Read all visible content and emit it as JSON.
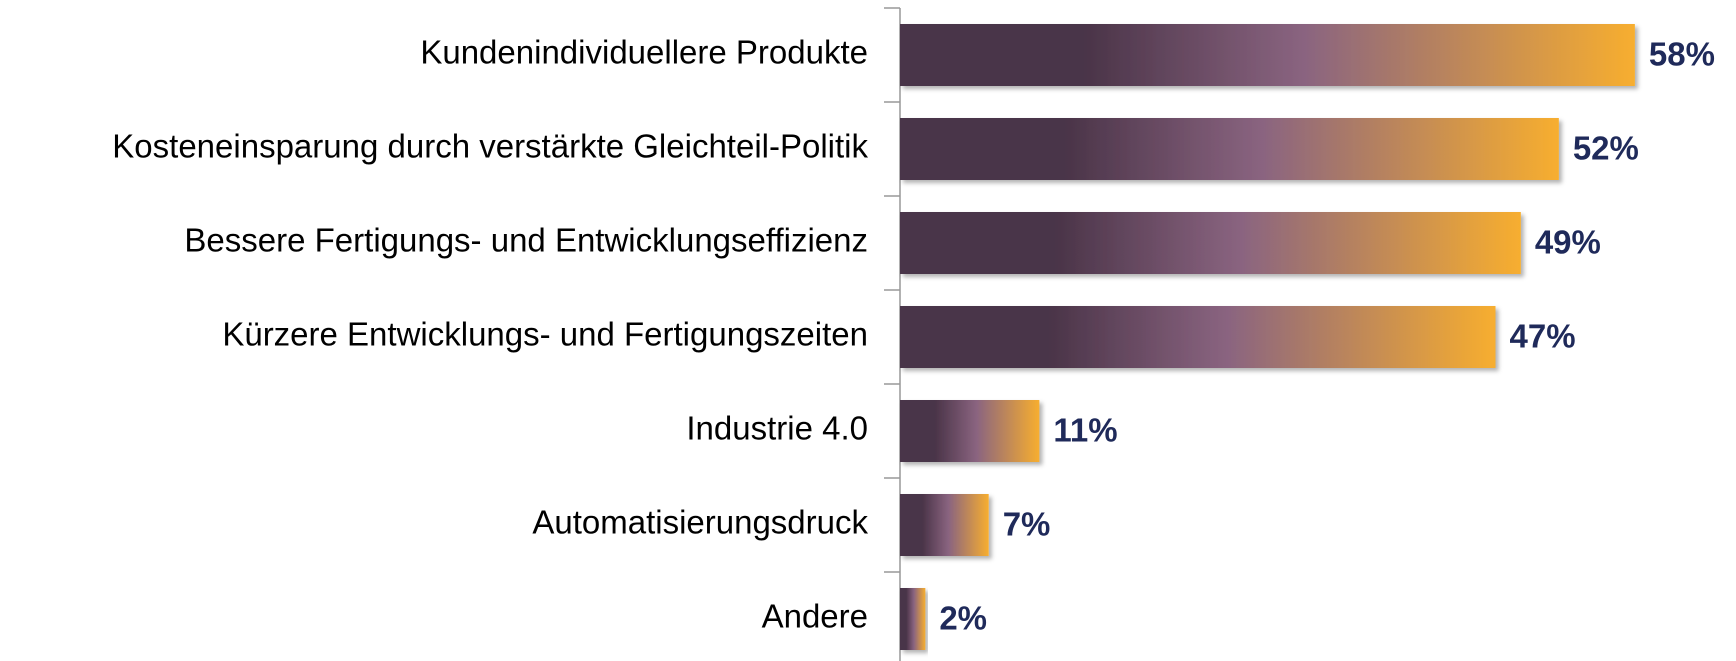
{
  "chart_data": {
    "type": "bar",
    "orientation": "horizontal",
    "categories": [
      "Kundenindividuellere Produkte",
      "Kosteneinsparung durch verstärkte Gleichteil-Politik",
      "Bessere Fertigungs- und Entwicklungseffizienz",
      "Kürzere Entwicklungs- und Fertigungszeiten",
      "Industrie 4.0",
      "Automatisierungsdruck",
      "Andere"
    ],
    "values": [
      58,
      52,
      49,
      47,
      11,
      7,
      2
    ],
    "value_labels": [
      "58%",
      "52%",
      "49%",
      "47%",
      "11%",
      "7%",
      "2%"
    ],
    "colors": [
      "#4a3448",
      "#8a6480",
      "#f7ae2f"
    ]
  }
}
